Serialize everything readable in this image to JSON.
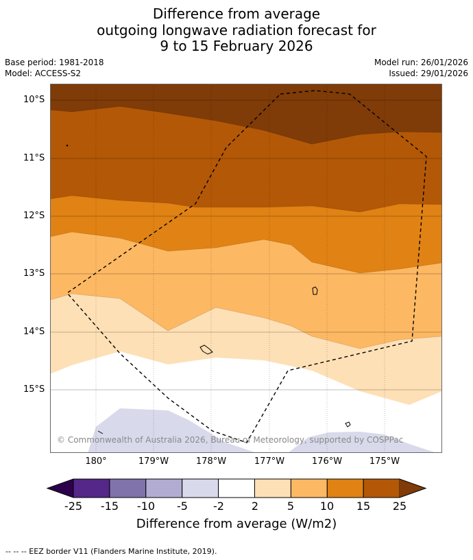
{
  "title": {
    "line1": "Difference from average",
    "line2": "outgoing longwave radiation forecast for",
    "line3": "9 to 15 February 2026"
  },
  "meta": {
    "base_period": "Base period: 1981-2018",
    "model": "Model: ACCESS-S2",
    "model_run": "Model run: 26/01/2026",
    "issued": "Issued: 29/01/2026"
  },
  "map": {
    "lat_labels": [
      "10°S",
      "11°S",
      "12°S",
      "13°S",
      "14°S",
      "15°S"
    ],
    "lon_labels": [
      "180°",
      "179°W",
      "178°W",
      "177°W",
      "176°W",
      "175°W"
    ],
    "copyright": "© Commonwealth of Australia 2026, Bureau of Meteorology, supported by COSPPac",
    "colors": {
      "c5": "#7f3b08",
      "c4": "#b35806",
      "c3": "#e08214",
      "c2": "#fdb863",
      "c1": "#fee0b6",
      "neutral": "#ffffff",
      "n1": "#d8daeb",
      "n2": "#b2abd2",
      "n3": "#8073ac",
      "n4": "#542788",
      "n5": "#2d004b"
    }
  },
  "colorbar": {
    "ticks": [
      "-25",
      "-15",
      "-10",
      "-5",
      "-2",
      "2",
      "5",
      "10",
      "15",
      "25"
    ],
    "colors": [
      "#542788",
      "#8073ac",
      "#b2abd2",
      "#d8daeb",
      "#ffffff",
      "#fee0b6",
      "#fdb863",
      "#e08214",
      "#b35806"
    ],
    "low_extend_color": "#2d004b",
    "high_extend_color": "#7f3b08",
    "label": "Difference from average (W/m2)"
  },
  "footer": {
    "legend": "--  --  -- EEZ border V11 (Flanders Marine Institute, 2019)."
  }
}
